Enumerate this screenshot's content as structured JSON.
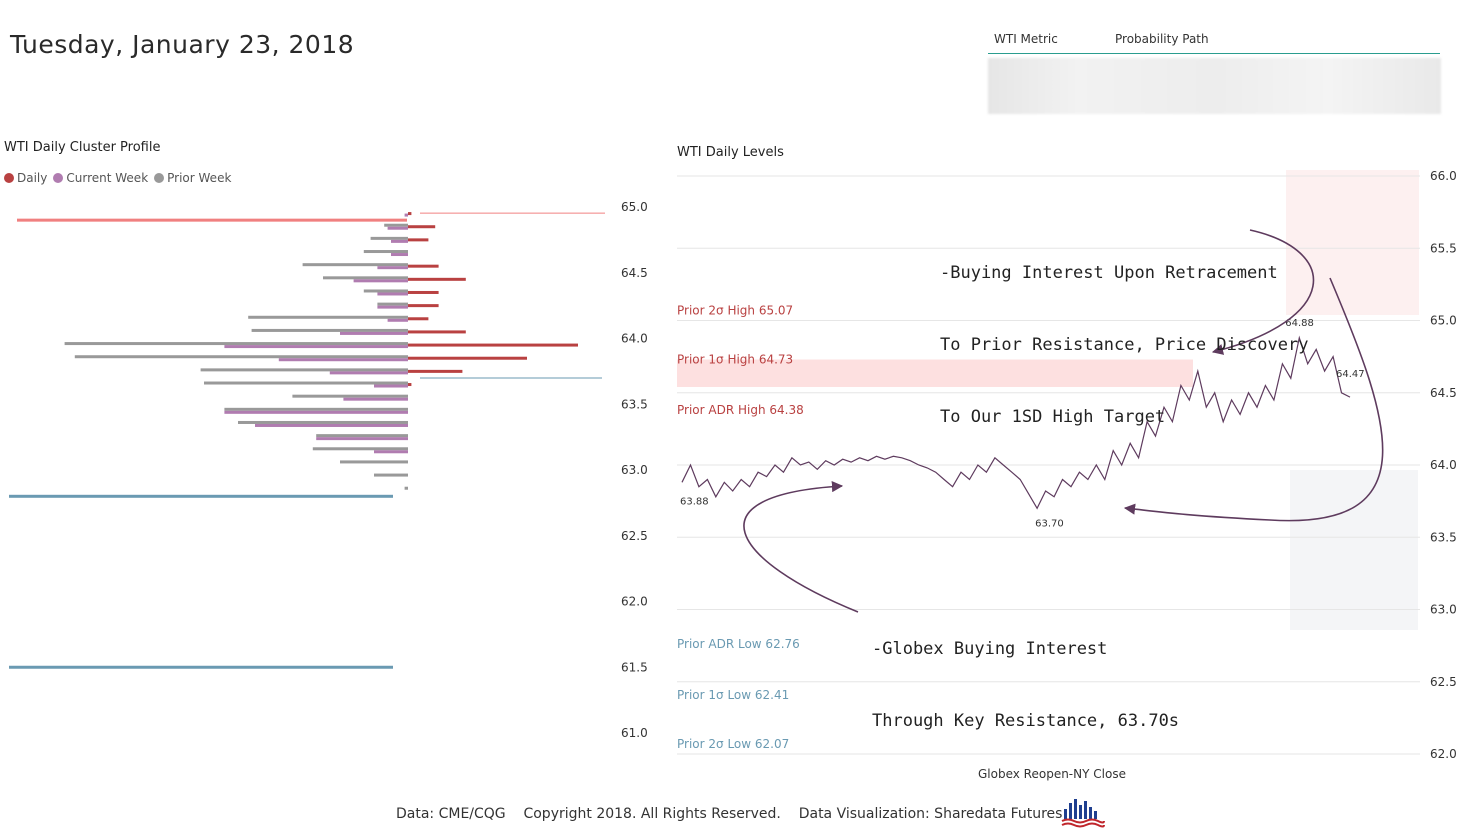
{
  "header": {
    "date": "Tuesday, January 23, 2018"
  },
  "metric_table": {
    "col1": "WTI Metric",
    "col2": "Probability Path"
  },
  "colors": {
    "daily": "#b94141",
    "current_week": "#b07cb0",
    "prior_week": "#999999",
    "resistance": "#f08080",
    "support": "#6a9ab2",
    "price": "#5e3b5e",
    "band": "#fde0e0",
    "upper_level_text": "#b94141",
    "lower_level_text": "#6a9ab2"
  },
  "legend": [
    {
      "label": "Daily",
      "color": "#b94141"
    },
    {
      "label": "Current Week",
      "color": "#b07cb0"
    },
    {
      "label": "Prior Week",
      "color": "#999999"
    }
  ],
  "footer": {
    "data_source": "Data: CME/CQG",
    "copyright": "Copyright 2018. All Rights Reserved.",
    "visualization": "Data Visualization: Sharedata Futures"
  },
  "annotations": {
    "top": [
      "-Buying Interest Upon Retracement",
      "To Prior Resistance, Price Discovery",
      "To Our 1SD High Target"
    ],
    "bottom": [
      "-Globex Buying Interest",
      "Through Key Resistance, 63.70s"
    ]
  },
  "chart_data": [
    {
      "type": "bar",
      "title": "WTI Daily Cluster Profile",
      "orientation": "horizontal",
      "ylim": [
        61.0,
        65.0
      ],
      "yticks": [
        65.0,
        64.5,
        64.0,
        63.5,
        63.0,
        62.5,
        62.0,
        61.5,
        61.0
      ],
      "categories": [
        64.95,
        64.85,
        64.75,
        64.65,
        64.55,
        64.45,
        64.35,
        64.25,
        64.15,
        64.05,
        63.95,
        63.85,
        63.75,
        63.65,
        63.55,
        63.45,
        63.35,
        63.25,
        63.15,
        63.05,
        62.95,
        62.85
      ],
      "series": [
        {
          "name": "Daily",
          "values": [
            1,
            8,
            6,
            0,
            9,
            17,
            9,
            9,
            6,
            17,
            50,
            35,
            16,
            1,
            0,
            0,
            0,
            0,
            0,
            0,
            0,
            0
          ]
        },
        {
          "name": "Current Week",
          "values": [
            1,
            6,
            5,
            5,
            9,
            16,
            9,
            9,
            6,
            20,
            54,
            38,
            23,
            10,
            19,
            54,
            45,
            27,
            10,
            0,
            0,
            0
          ]
        },
        {
          "name": "Prior Week",
          "values": [
            0,
            7,
            11,
            13,
            31,
            25,
            13,
            9,
            47,
            46,
            101,
            98,
            61,
            60,
            34,
            54,
            50,
            27,
            28,
            20,
            10,
            1
          ]
        }
      ],
      "reference_lines": [
        {
          "label": "resistance",
          "value": 64.9
        },
        {
          "label": "marker",
          "value": 63.7
        },
        {
          "label": "support",
          "value": 62.8
        },
        {
          "label": "support",
          "value": 61.5
        }
      ]
    },
    {
      "type": "line",
      "title": "WTI Daily Levels",
      "xlabel": "Globex Reopen-NY Close",
      "ylim": [
        62.0,
        66.0
      ],
      "yticks": [
        66.0,
        65.5,
        65.0,
        64.5,
        64.0,
        63.5,
        63.0,
        62.5,
        62.0
      ],
      "levels": [
        {
          "label": "Prior 2σ High 65.07",
          "value": 65.07,
          "side": "high"
        },
        {
          "label": "Prior 1σ High 64.73",
          "value": 64.73,
          "side": "high"
        },
        {
          "label": "Prior ADR High 64.38",
          "value": 64.38,
          "side": "high"
        },
        {
          "label": "Prior ADR Low 62.76",
          "value": 62.76,
          "side": "low"
        },
        {
          "label": "Prior 1σ Low 62.41",
          "value": 62.41,
          "side": "low"
        },
        {
          "label": "Prior 2σ Low 62.07",
          "value": 62.07,
          "side": "low"
        }
      ],
      "band": [
        64.54,
        64.73
      ],
      "point_labels": [
        {
          "label": "63.88",
          "index": 0
        },
        {
          "label": "63.70",
          "index": 42
        },
        {
          "label": "64.88",
          "index": 73
        },
        {
          "label": "64.47",
          "index": 79
        }
      ],
      "series": [
        {
          "name": "WTI",
          "values": [
            63.88,
            64.0,
            63.85,
            63.9,
            63.78,
            63.88,
            63.82,
            63.9,
            63.85,
            63.95,
            63.92,
            64.0,
            63.95,
            64.05,
            64.0,
            64.02,
            63.97,
            64.03,
            64.0,
            64.04,
            64.02,
            64.05,
            64.03,
            64.06,
            64.04,
            64.06,
            64.05,
            64.03,
            64.0,
            63.98,
            63.95,
            63.9,
            63.85,
            63.95,
            63.9,
            64.0,
            63.95,
            64.05,
            64.0,
            63.95,
            63.9,
            63.8,
            63.7,
            63.82,
            63.78,
            63.9,
            63.85,
            63.95,
            63.9,
            64.0,
            63.9,
            64.1,
            64.0,
            64.15,
            64.05,
            64.3,
            64.2,
            64.4,
            64.3,
            64.55,
            64.45,
            64.65,
            64.4,
            64.5,
            64.3,
            64.45,
            64.35,
            64.5,
            64.4,
            64.55,
            64.45,
            64.7,
            64.6,
            64.88,
            64.7,
            64.8,
            64.65,
            64.75,
            64.5,
            64.47
          ]
        }
      ]
    }
  ]
}
